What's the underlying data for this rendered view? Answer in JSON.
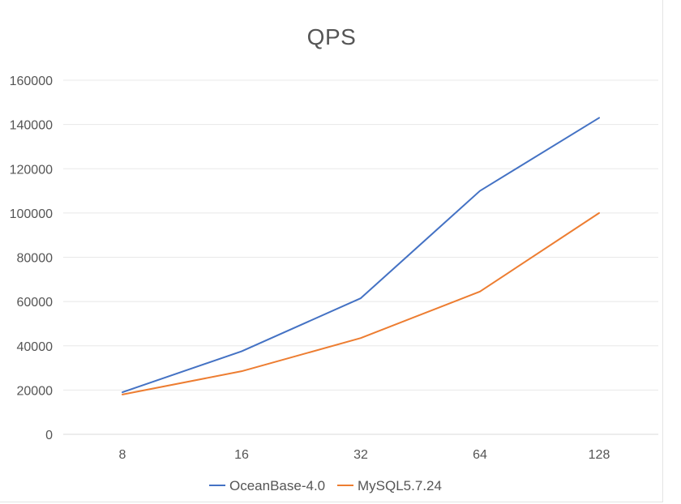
{
  "chart_data": {
    "type": "line",
    "title": "QPS",
    "xlabel": "",
    "ylabel": "",
    "categories": [
      "8",
      "16",
      "32",
      "64",
      "128"
    ],
    "ylim": [
      0,
      160000
    ],
    "yticks": [
      "0",
      "20000",
      "40000",
      "60000",
      "80000",
      "100000",
      "120000",
      "140000",
      "160000"
    ],
    "grid": true,
    "legend_position": "bottom",
    "series": [
      {
        "name": "OceanBase-4.0",
        "color": "#4472c4",
        "values": [
          19000,
          37500,
          61500,
          110000,
          143000
        ]
      },
      {
        "name": "MySQL5.7.24",
        "color": "#ed7d31",
        "values": [
          18000,
          28500,
          43500,
          64500,
          100000
        ]
      }
    ]
  }
}
